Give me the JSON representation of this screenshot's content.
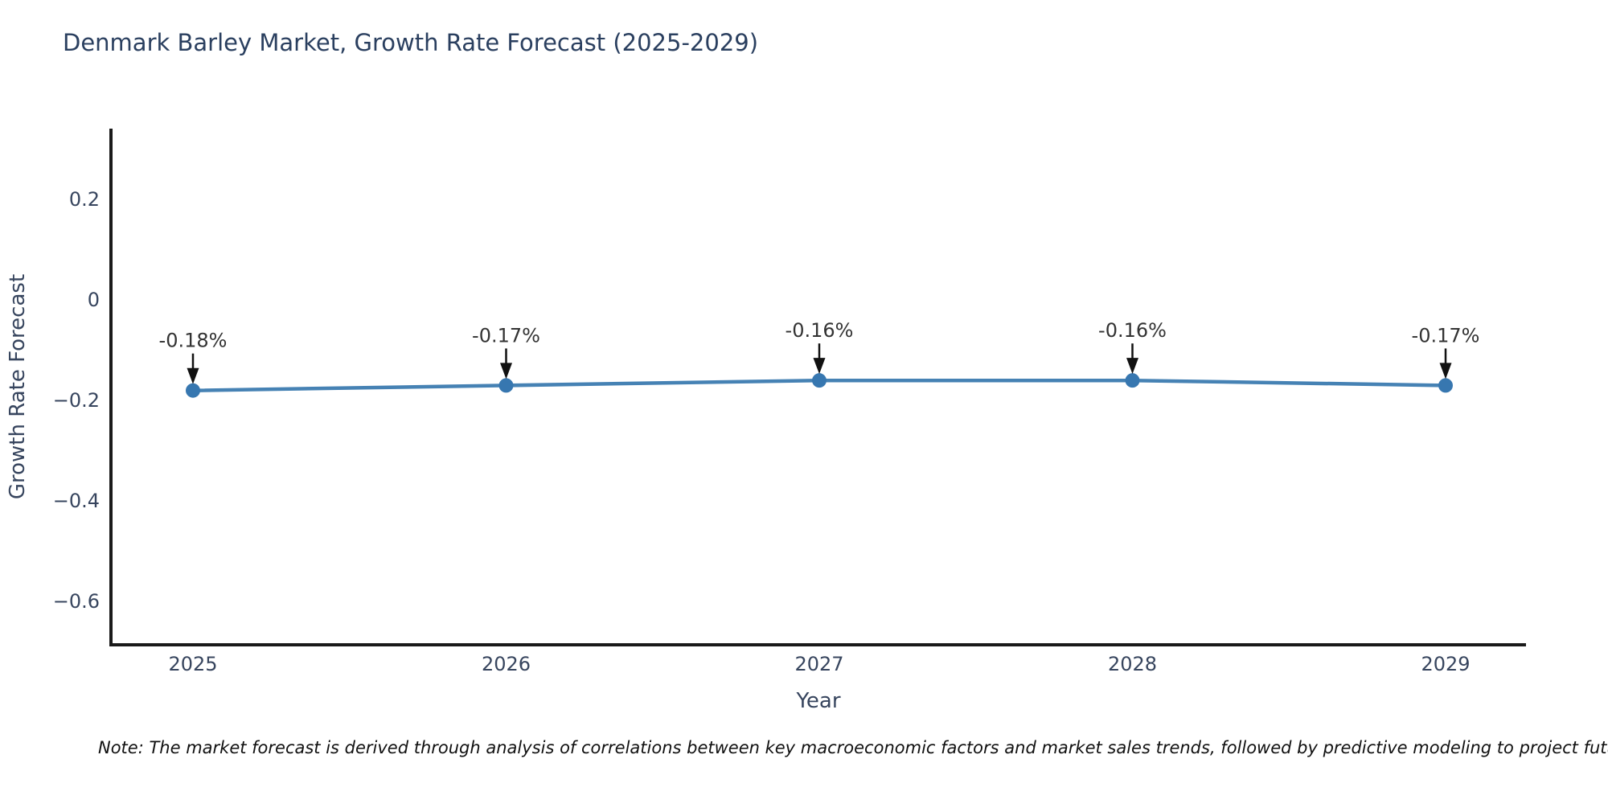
{
  "title": "Denmark Barley Market, Growth Rate Forecast (2025-2029)",
  "note": "Note: The market forecast is derived through analysis of correlations between key macroeconomic factors and market sales trends, followed by predictive modeling to project future sales",
  "colors": {
    "title_text": "#2a3f5f",
    "axis_text": "#37455e",
    "spine": "#1a1a1a",
    "line": "#4682b4",
    "marker": "#3777b0",
    "annotation_text": "#333333",
    "arrow": "#111111"
  },
  "chart_data": {
    "type": "line",
    "title": "Denmark Barley Market, Growth Rate Forecast (2025-2029)",
    "xlabel": "Year",
    "ylabel": "Growth Rate Forecast",
    "categories": [
      "2025",
      "2026",
      "2027",
      "2028",
      "2029"
    ],
    "series": [
      {
        "name": "Growth Rate Forecast",
        "values": [
          -0.18,
          -0.17,
          -0.16,
          -0.16,
          -0.17
        ]
      }
    ],
    "point_labels": [
      "-0.18%",
      "-0.17%",
      "-0.16%",
      "-0.16%",
      "-0.17%"
    ],
    "yticks": [
      0.2,
      0,
      -0.2,
      -0.4,
      -0.6
    ],
    "ytick_labels": [
      "0.2",
      "0",
      "−0.2",
      "−0.4",
      "−0.6"
    ],
    "ylim": [
      -0.686,
      0.341
    ],
    "grid": false,
    "legend": "none",
    "annotations_have_arrows": true
  }
}
